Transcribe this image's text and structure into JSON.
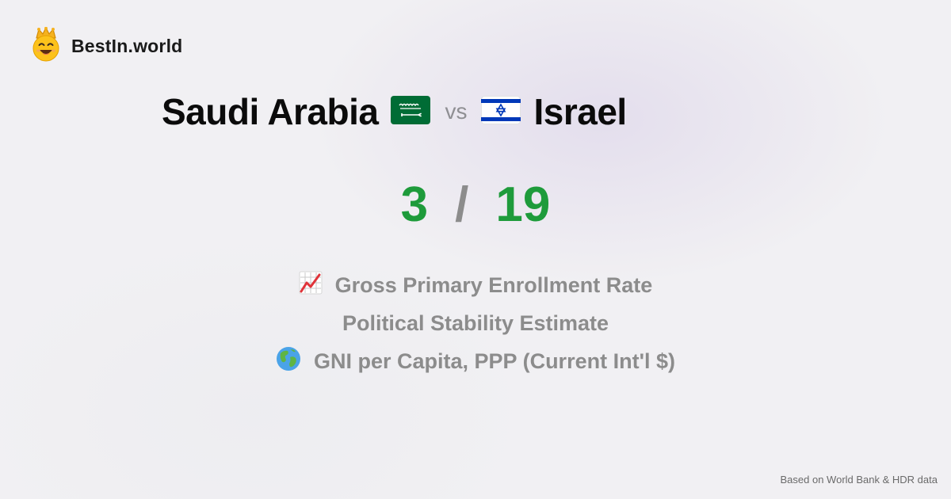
{
  "brand": {
    "name": "BestIn.world",
    "logo_icon": "crowned-smiley-icon"
  },
  "matchup": {
    "left_country": "Saudi Arabia",
    "left_flag": "saudi-arabia-flag-icon",
    "vs_label": "vs",
    "right_country": "Israel",
    "right_flag": "israel-flag-icon"
  },
  "score": {
    "left": "3",
    "separator": "/",
    "right": "19"
  },
  "metrics": [
    {
      "label": "Gross Primary Enrollment Rate",
      "icon": "chart-increasing-icon"
    },
    {
      "label": "Political Stability Estimate",
      "icon": ""
    },
    {
      "label": "GNI per Capita, PPP (Current Int'l $)",
      "icon": "globe-icon"
    }
  ],
  "footer": {
    "text": "Based on World Bank & HDR data"
  },
  "colors": {
    "score_green": "#1e9b3b",
    "muted_gray": "#8c8c8c",
    "saudi_green": "#006c35",
    "israel_blue": "#0038b8"
  }
}
